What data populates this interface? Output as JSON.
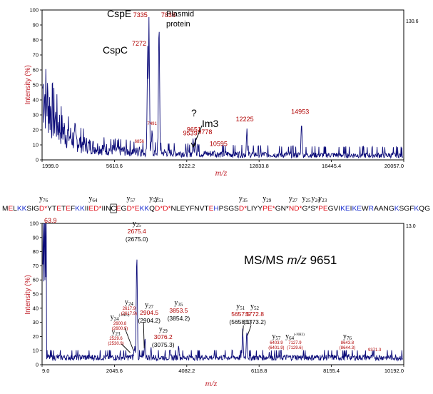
{
  "colors": {
    "trace": "#0a0a78",
    "label_red": "#b00000",
    "axis_title": "#c0202a",
    "seq_red": "#e0101a",
    "seq_blue": "#1a2fd0",
    "seq_black": "#000000"
  },
  "chart_data": [
    {
      "type": "line",
      "title": "",
      "xlabel": "m/z",
      "ylabel": "Intensity (%)",
      "xlim": [
        1999.0,
        20057.0
      ],
      "ylim": [
        0,
        100
      ],
      "x_ticks": [
        "1999.0",
        "5610.6",
        "9222.2",
        "12833.8",
        "16445.4",
        "20057.0"
      ],
      "y_ticks": [
        "0",
        "10",
        "20",
        "30",
        "40",
        "50",
        "60",
        "70",
        "80",
        "90",
        "100"
      ],
      "max_intensity": "130.6",
      "peaks": [
        {
          "mz": 6856,
          "y": 10,
          "label": "6856"
        },
        {
          "mz": 7272,
          "y": 78,
          "label": "7272"
        },
        {
          "mz": 7335,
          "y": 96,
          "label": "7335"
        },
        {
          "mz": 7491,
          "y": 22,
          "label": "7491"
        },
        {
          "mz": 7838,
          "y": 100,
          "label": "7838"
        },
        {
          "mz": 9539,
          "y": 15,
          "label": "9539"
        },
        {
          "mz": 9651,
          "y": 17,
          "label": "9651"
        },
        {
          "mz": 9778,
          "y": 12,
          "label": "9778"
        },
        {
          "mz": 10595,
          "y": 7,
          "label": "10595"
        },
        {
          "mz": 12225,
          "y": 22,
          "label": "12225"
        },
        {
          "mz": 14953,
          "y": 27,
          "label": "14953"
        }
      ],
      "annotations": {
        "cspe": "CspE",
        "cspc": "CspC",
        "plasmid_1": "Plasmid",
        "plasmid_2": "protein",
        "question": "?",
        "im3": "Im3"
      }
    },
    {
      "type": "line",
      "title": "MS/MS m/z 9651",
      "title_main": "MS/MS ",
      "title_mz": "m/z",
      "title_value": " 9651",
      "xlabel": "m/z",
      "ylabel": "Intensity (%)",
      "xlim": [
        9.0,
        10192.0
      ],
      "ylim": [
        0,
        100
      ],
      "x_ticks": [
        "9.0",
        "2045.6",
        "4082.2",
        "6118.8",
        "8155.4",
        "10192.0"
      ],
      "y_ticks": [
        "0",
        "10",
        "20",
        "30",
        "40",
        "50",
        "60",
        "70",
        "80",
        "90",
        "100"
      ],
      "max_intensity": "13.0",
      "first_peak_label": "63.9",
      "peaks": [
        {
          "ion": "23",
          "mz": 2529.6,
          "obs": "2529.6",
          "calc": "(2530.9)",
          "y": 8,
          "style": "small"
        },
        {
          "ion": "24",
          "mod": "(-NH3)",
          "mz": 2600.8,
          "obs": "2600.8",
          "calc": "(2600.9)",
          "y": 12,
          "style": "small"
        },
        {
          "ion": "24",
          "mz": 2617.9,
          "obs": "2617.9",
          "calc": "(2617.9)",
          "y": 14,
          "style": "small"
        },
        {
          "ion": "25",
          "mz": 2675.4,
          "obs": "2675.4",
          "calc": "(2675.0)",
          "y": 86,
          "style": "big"
        },
        {
          "ion": "27",
          "mz": 2904.5,
          "obs": "2904.5",
          "calc": "(2904.2)",
          "y": 21,
          "style": "big"
        },
        {
          "ion": "29",
          "mz": 3076.2,
          "obs": "3076.2",
          "calc": "(3075.3)",
          "y": 13,
          "style": "big"
        },
        {
          "ion": "35",
          "mz": 3853.5,
          "obs": "3853.5",
          "calc": "(3854.2)",
          "y": 15,
          "style": "big"
        },
        {
          "ion": "51",
          "mz": 5657.5,
          "obs": "5657.5",
          "calc": "(5658.1)",
          "y": 26,
          "style": "big"
        },
        {
          "ion": "52",
          "mz": 5772.8,
          "obs": "5772.8",
          "calc": "(5773.2)",
          "y": 26,
          "style": "big"
        },
        {
          "ion": "57",
          "mz": 6403.9,
          "obs": "6403.9",
          "calc": "(6401.9)",
          "y": 9,
          "style": "small"
        },
        {
          "ion": "64",
          "mod": "(-NH3)",
          "mz": 7127.9,
          "obs": "7127.9",
          "calc": "(7129.6)",
          "y": 6,
          "style": "small"
        },
        {
          "ion": "76",
          "mz": 8643.8,
          "obs": "8643.8",
          "calc": "(8644.3)",
          "y": 8,
          "style": "small"
        },
        {
          "ion": "",
          "mz": 9371.3,
          "obs": "9371.3",
          "calc": "",
          "y": 6,
          "style": "lone"
        }
      ]
    }
  ],
  "sequence": {
    "segments": [
      {
        "t": "M",
        "c": "k"
      },
      {
        "t": "E",
        "c": "r"
      },
      {
        "t": "L",
        "c": "k"
      },
      {
        "t": "KK",
        "c": "b"
      },
      {
        "t": "SIG",
        "c": "k"
      },
      {
        "t": "D*",
        "c": "r"
      },
      {
        "t": "YT",
        "c": "k"
      },
      {
        "t": "E",
        "c": "r"
      },
      {
        "t": "T",
        "c": "k"
      },
      {
        "t": "E",
        "c": "r"
      },
      {
        "t": "F",
        "c": "k"
      },
      {
        "t": "KK",
        "c": "b"
      },
      {
        "t": "II",
        "c": "k"
      },
      {
        "t": "ED*",
        "c": "r"
      },
      {
        "t": "IIN",
        "c": "k"
      },
      {
        "t": "C",
        "c": "k",
        "box": true
      },
      {
        "t": "E",
        "c": "r"
      },
      {
        "t": "G",
        "c": "k"
      },
      {
        "t": "D*",
        "c": "r"
      },
      {
        "t": "E",
        "c": "r"
      },
      {
        "t": "KK",
        "c": "b"
      },
      {
        "t": "Q",
        "c": "k"
      },
      {
        "t": "D*D*",
        "c": "r"
      },
      {
        "t": "NLEYFNVT",
        "c": "k"
      },
      {
        "t": "E",
        "c": "r"
      },
      {
        "t": "H",
        "c": "b"
      },
      {
        "t": "PSGS",
        "c": "k"
      },
      {
        "t": "D*",
        "c": "r"
      },
      {
        "t": "LIYY",
        "c": "k"
      },
      {
        "t": "PE*",
        "c": "r"
      },
      {
        "t": "GN*",
        "c": "k"
      },
      {
        "t": "ND*",
        "c": "r"
      },
      {
        "t": "G*S*",
        "c": "k"
      },
      {
        "t": "PE",
        "c": "r"
      },
      {
        "t": "GVI",
        "c": "k"
      },
      {
        "t": "KE",
        "c": "b"
      },
      {
        "t": "I",
        "c": "k"
      },
      {
        "t": "KE",
        "c": "b"
      },
      {
        "t": "W",
        "c": "k"
      },
      {
        "t": "R",
        "c": "b"
      },
      {
        "t": "AANG",
        "c": "k"
      },
      {
        "t": "K",
        "c": "b"
      },
      {
        "t": "SGF",
        "c": "k"
      },
      {
        "t": "K",
        "c": "b"
      },
      {
        "t": "QG",
        "c": "k"
      }
    ],
    "ion_markers": [
      {
        "num": "76",
        "seg": 5
      },
      {
        "num": "64",
        "seg": 13
      },
      {
        "num": "57",
        "seg": 18
      },
      {
        "num": "52",
        "seg": 21
      },
      {
        "num": "51",
        "seg": 22
      },
      {
        "num": "35",
        "seg": 27
      },
      {
        "num": "29",
        "seg": 29
      },
      {
        "num": "27",
        "seg": 31
      },
      {
        "num": "25",
        "seg": 32
      },
      {
        "num": "24",
        "seg": 32
      },
      {
        "num": "23",
        "seg": 33
      }
    ]
  }
}
